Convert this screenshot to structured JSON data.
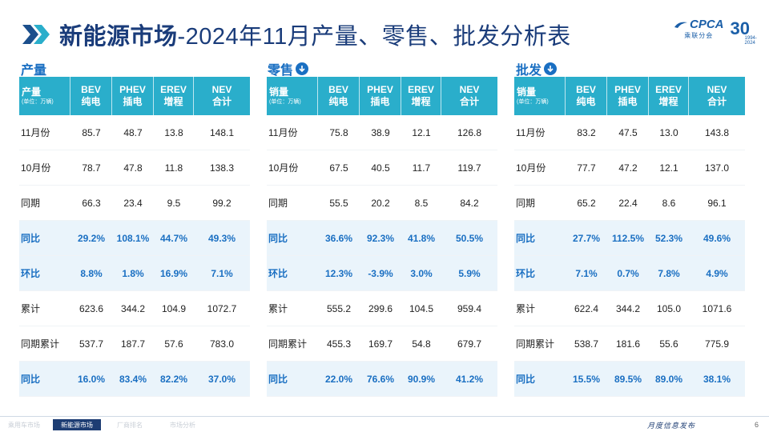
{
  "title": {
    "main": "新能源市场",
    "rest": "-2024年11月产量、零售、批发分析表"
  },
  "logo": {
    "text": "CPCA",
    "sub": "乘联分会",
    "anniv": "30",
    "anniv_sub": "1994-2024"
  },
  "footer": {
    "tabs": [
      "乘用车市场",
      "新能源市场",
      "厂商排名",
      "市场分析"
    ],
    "active_tab": 1,
    "slogan": "月度信息发布",
    "page": "6"
  },
  "accent": "#2aaecb",
  "highlight_color": "#1a6fc2",
  "sections": [
    {
      "label": "产量",
      "has_icon": false,
      "header": [
        {
          "main": "产量",
          "sub": "(单位：万辆)"
        },
        {
          "main": "BEV",
          "sub2": "纯电"
        },
        {
          "main": "PHEV",
          "sub2": "插电"
        },
        {
          "main": "EREV",
          "sub2": "增程"
        },
        {
          "main": "NEV",
          "sub2": "合计"
        }
      ],
      "rows": [
        {
          "label": "11月份",
          "values": [
            "85.7",
            "48.7",
            "13.8",
            "148.1"
          ],
          "hl": false
        },
        {
          "label": "10月份",
          "values": [
            "78.7",
            "47.8",
            "11.8",
            "138.3"
          ],
          "hl": false
        },
        {
          "label": "同期",
          "values": [
            "66.3",
            "23.4",
            "9.5",
            "99.2"
          ],
          "hl": false
        },
        {
          "label": "同比",
          "values": [
            "29.2%",
            "108.1%",
            "44.7%",
            "49.3%"
          ],
          "hl": true
        },
        {
          "label": "环比",
          "values": [
            "8.8%",
            "1.8%",
            "16.9%",
            "7.1%"
          ],
          "hl": true
        },
        {
          "label": "累计",
          "values": [
            "623.6",
            "344.2",
            "104.9",
            "1072.7"
          ],
          "hl": false
        },
        {
          "label": "同期累计",
          "values": [
            "537.7",
            "187.7",
            "57.6",
            "783.0"
          ],
          "hl": false
        },
        {
          "label": "同比",
          "values": [
            "16.0%",
            "83.4%",
            "82.2%",
            "37.0%"
          ],
          "hl": true
        }
      ]
    },
    {
      "label": "零售",
      "has_icon": true,
      "header": [
        {
          "main": "销量",
          "sub": "(单位：万辆)"
        },
        {
          "main": "BEV",
          "sub2": "纯电"
        },
        {
          "main": "PHEV",
          "sub2": "插电"
        },
        {
          "main": "EREV",
          "sub2": "增程"
        },
        {
          "main": "NEV",
          "sub2": "合计"
        }
      ],
      "rows": [
        {
          "label": "11月份",
          "values": [
            "75.8",
            "38.9",
            "12.1",
            "126.8"
          ],
          "hl": false
        },
        {
          "label": "10月份",
          "values": [
            "67.5",
            "40.5",
            "11.7",
            "119.7"
          ],
          "hl": false
        },
        {
          "label": "同期",
          "values": [
            "55.5",
            "20.2",
            "8.5",
            "84.2"
          ],
          "hl": false
        },
        {
          "label": "同比",
          "values": [
            "36.6%",
            "92.3%",
            "41.8%",
            "50.5%"
          ],
          "hl": true
        },
        {
          "label": "环比",
          "values": [
            "12.3%",
            "-3.9%",
            "3.0%",
            "5.9%"
          ],
          "hl": true
        },
        {
          "label": "累计",
          "values": [
            "555.2",
            "299.6",
            "104.5",
            "959.4"
          ],
          "hl": false
        },
        {
          "label": "同期累计",
          "values": [
            "455.3",
            "169.7",
            "54.8",
            "679.7"
          ],
          "hl": false
        },
        {
          "label": "同比",
          "values": [
            "22.0%",
            "76.6%",
            "90.9%",
            "41.2%"
          ],
          "hl": true
        }
      ]
    },
    {
      "label": "批发",
      "has_icon": true,
      "header": [
        {
          "main": "销量",
          "sub": "(单位：万辆)"
        },
        {
          "main": "BEV",
          "sub2": "纯电"
        },
        {
          "main": "PHEV",
          "sub2": "插电"
        },
        {
          "main": "EREV",
          "sub2": "增程"
        },
        {
          "main": "NEV",
          "sub2": "合计"
        }
      ],
      "rows": [
        {
          "label": "11月份",
          "values": [
            "83.2",
            "47.5",
            "13.0",
            "143.8"
          ],
          "hl": false
        },
        {
          "label": "10月份",
          "values": [
            "77.7",
            "47.2",
            "12.1",
            "137.0"
          ],
          "hl": false
        },
        {
          "label": "同期",
          "values": [
            "65.2",
            "22.4",
            "8.6",
            "96.1"
          ],
          "hl": false
        },
        {
          "label": "同比",
          "values": [
            "27.7%",
            "112.5%",
            "52.3%",
            "49.6%"
          ],
          "hl": true
        },
        {
          "label": "环比",
          "values": [
            "7.1%",
            "0.7%",
            "7.8%",
            "4.9%"
          ],
          "hl": true
        },
        {
          "label": "累计",
          "values": [
            "622.4",
            "344.2",
            "105.0",
            "1071.6"
          ],
          "hl": false
        },
        {
          "label": "同期累计",
          "values": [
            "538.7",
            "181.6",
            "55.6",
            "775.9"
          ],
          "hl": false
        },
        {
          "label": "同比",
          "values": [
            "15.5%",
            "89.5%",
            "89.0%",
            "38.1%"
          ],
          "hl": true
        }
      ]
    }
  ]
}
